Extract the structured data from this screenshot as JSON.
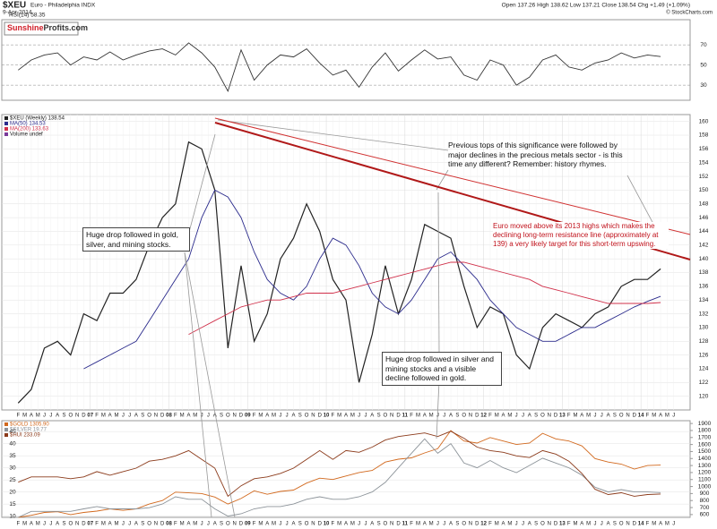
{
  "header": {
    "symbol": "$XEU",
    "name": "Euro - Philadelphia INDX",
    "date": "9-Apr-2014",
    "quote": "Open 137.26 High 138.62 Low 137.21 Close 138.54 Chg +1.49 (+1.09%)",
    "source": "© StockCharts.com",
    "logo_a": "Sunshine",
    "logo_b": "Profits.com"
  },
  "chart_data": [
    {
      "type": "line",
      "xlim": [
        -2.5,
        102.5
      ],
      "ylim": [
        15,
        95
      ],
      "yticks": [
        30,
        50,
        70
      ],
      "grid": true,
      "x": [
        0,
        2,
        4,
        6,
        8,
        10,
        12,
        14,
        16,
        18,
        20,
        22,
        24,
        26,
        28,
        30,
        32,
        34,
        36,
        38,
        40,
        42,
        44,
        46,
        48,
        50,
        52,
        54,
        56,
        58,
        60,
        62,
        64,
        66,
        68,
        70,
        72,
        74,
        76,
        78,
        80,
        82,
        84,
        86,
        88,
        90,
        92,
        94,
        96,
        98
      ],
      "series": [
        {
          "name": "RSI(14) 58.35",
          "color": "#333333",
          "values": [
            45,
            55,
            60,
            62,
            50,
            58,
            55,
            63,
            55,
            60,
            64,
            66,
            60,
            72,
            62,
            48,
            24,
            65,
            35,
            50,
            60,
            58,
            66,
            52,
            40,
            45,
            28,
            48,
            62,
            44,
            55,
            65,
            56,
            58,
            40,
            35,
            55,
            50,
            30,
            38,
            55,
            60,
            48,
            45,
            52,
            55,
            62,
            57,
            60,
            58.35
          ]
        }
      ]
    },
    {
      "type": "line",
      "xlim": [
        -2.5,
        102.5
      ],
      "ylim": [
        118,
        161
      ],
      "yticks": [
        120,
        122,
        124,
        126,
        128,
        130,
        132,
        134,
        136,
        138,
        140,
        142,
        144,
        146,
        148,
        150,
        152,
        154,
        156,
        158,
        160
      ],
      "grid": true,
      "categories": [
        "F",
        "M",
        "A",
        "M",
        "J",
        "J",
        "A",
        "S",
        "O",
        "N",
        "D",
        "07",
        "F",
        "M",
        "A",
        "M",
        "J",
        "J",
        "A",
        "S",
        "O",
        "N",
        "D",
        "08",
        "F",
        "M",
        "A",
        "M",
        "J",
        "J",
        "A",
        "S",
        "O",
        "N",
        "D",
        "09",
        "F",
        "M",
        "A",
        "M",
        "J",
        "J",
        "A",
        "S",
        "O",
        "N",
        "D",
        "10",
        "F",
        "M",
        "A",
        "M",
        "J",
        "J",
        "A",
        "S",
        "O",
        "N",
        "D",
        "11",
        "F",
        "M",
        "A",
        "M",
        "J",
        "J",
        "A",
        "S",
        "O",
        "N",
        "D",
        "12",
        "F",
        "M",
        "A",
        "M",
        "J",
        "J",
        "A",
        "S",
        "O",
        "N",
        "D",
        "13",
        "F",
        "M",
        "A",
        "M",
        "J",
        "J",
        "A",
        "S",
        "O",
        "N",
        "D",
        "14",
        "F",
        "M",
        "A",
        "M",
        "J"
      ],
      "x": [
        0,
        2,
        4,
        6,
        8,
        10,
        12,
        14,
        16,
        18,
        20,
        22,
        24,
        26,
        28,
        30,
        32,
        34,
        36,
        38,
        40,
        42,
        44,
        46,
        48,
        50,
        52,
        54,
        56,
        58,
        60,
        62,
        64,
        66,
        68,
        70,
        72,
        74,
        76,
        78,
        80,
        82,
        84,
        86,
        88,
        90,
        92,
        94,
        96,
        98
      ],
      "series": [
        {
          "name": "$XEU (Weekly) 138.54",
          "color": "#222222",
          "values": [
            119,
            121,
            127,
            128,
            126,
            132,
            131,
            135,
            135,
            137,
            142,
            146,
            148,
            157,
            156,
            150,
            127,
            139,
            128,
            132,
            140,
            143,
            148,
            144,
            137,
            134,
            122,
            129,
            139,
            132,
            137,
            145,
            144,
            143,
            136,
            130,
            133,
            132,
            126,
            124,
            130,
            132,
            131,
            130,
            132,
            133,
            136,
            137,
            137,
            138.54
          ]
        },
        {
          "name": "MA(50) 134.53",
          "color": "#2b2b8c",
          "values": [
            null,
            null,
            null,
            null,
            null,
            124,
            125,
            126,
            127,
            128,
            131,
            134,
            137,
            140,
            146,
            150,
            149,
            146,
            141,
            137,
            135,
            134,
            136,
            140,
            143,
            142,
            139,
            135,
            133,
            132,
            134,
            137,
            140,
            141,
            139,
            137,
            134,
            132,
            130,
            129,
            128,
            128,
            129,
            130,
            130,
            131,
            132,
            133,
            133.8,
            134.53
          ]
        },
        {
          "name": "MA(200) 133.63",
          "color": "#d0304a",
          "values": [
            null,
            null,
            null,
            null,
            null,
            null,
            null,
            null,
            null,
            null,
            null,
            null,
            null,
            129,
            130,
            131,
            132,
            133,
            133.5,
            134,
            134,
            134.5,
            135,
            135,
            135,
            135.5,
            136,
            136.5,
            137,
            137.5,
            138,
            138.5,
            139,
            139.5,
            139.5,
            139,
            138.5,
            138,
            137.5,
            137,
            136,
            135.5,
            135,
            134.5,
            134,
            133.5,
            133.5,
            133.5,
            133.5,
            133.63
          ]
        }
      ],
      "volume_label": "Volume undef",
      "annotations": [
        "Previous tops of this significance were followed by major declines in the precious metals sector - is this time any different? Remember: history rhymes.",
        "Euro moved above its 2013 highs which makes the declining long-term resistance line (approximately at 139) a very likely target for this short-term upswing.",
        "Huge drop followed in gold, silver, and mining stocks.",
        "Huge drop followed in silver and mining stocks and a visible decline followed in gold."
      ]
    },
    {
      "type": "line",
      "xlim": [
        -2.5,
        102.5
      ],
      "ylim": [
        9.5,
        49.5
      ],
      "yticks": [
        10,
        15,
        20,
        25,
        30,
        35,
        40,
        45
      ],
      "y2lim": [
        560,
        1940
      ],
      "y2ticks": [
        600,
        700,
        800,
        900,
        1000,
        1100,
        1200,
        1300,
        1400,
        1500,
        1600,
        1700,
        1800,
        1900
      ],
      "y3lim": [
        100,
        650
      ],
      "grid": true,
      "x": [
        0,
        2,
        4,
        6,
        8,
        10,
        12,
        14,
        16,
        18,
        20,
        22,
        24,
        26,
        28,
        30,
        32,
        34,
        36,
        38,
        40,
        42,
        44,
        46,
        48,
        50,
        52,
        54,
        56,
        58,
        60,
        62,
        64,
        66,
        68,
        70,
        72,
        74,
        76,
        78,
        80,
        82,
        84,
        86,
        88,
        90,
        92,
        94,
        96,
        98
      ],
      "series": [
        {
          "name": "$GOLD 1305.90",
          "color": "#d2691e",
          "axis": "y2",
          "values": [
            560,
            590,
            630,
            640,
            600,
            630,
            650,
            680,
            660,
            680,
            750,
            800,
            920,
            910,
            900,
            850,
            750,
            830,
            940,
            890,
            930,
            950,
            1050,
            1120,
            1100,
            1150,
            1200,
            1230,
            1350,
            1390,
            1410,
            1480,
            1540,
            1800,
            1650,
            1620,
            1700,
            1650,
            1600,
            1620,
            1760,
            1680,
            1650,
            1580,
            1400,
            1350,
            1320,
            1250,
            1300,
            1305.9
          ]
        },
        {
          "name": "$SILVER 19.77",
          "color": "#8c9399",
          "values": [
            9.5,
            12,
            12,
            12,
            12,
            13,
            14,
            13,
            13,
            13,
            13.5,
            15,
            18,
            17,
            17,
            13,
            10,
            11,
            13,
            14,
            14,
            15,
            17,
            18,
            17,
            17,
            18,
            20,
            24,
            30,
            36,
            42,
            36,
            40,
            32,
            30,
            33,
            30,
            28,
            31,
            34,
            32,
            30,
            27,
            22,
            20,
            21,
            20,
            20,
            19.77
          ]
        },
        {
          "name": "$HUI 233.09",
          "color": "#8b3a1a",
          "axis": "y3",
          "values": [
            300,
            330,
            330,
            330,
            320,
            330,
            360,
            340,
            360,
            380,
            420,
            430,
            450,
            480,
            430,
            380,
            220,
            280,
            320,
            330,
            350,
            380,
            430,
            480,
            430,
            480,
            470,
            500,
            540,
            560,
            570,
            580,
            560,
            590,
            550,
            500,
            480,
            470,
            450,
            440,
            480,
            460,
            420,
            350,
            260,
            230,
            240,
            220,
            230,
            233.09
          ]
        }
      ]
    }
  ]
}
